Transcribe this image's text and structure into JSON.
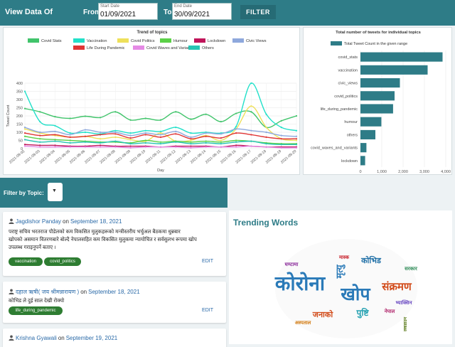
{
  "header": {
    "title": "View Data Of",
    "from_label": "From",
    "start_placeholder": "Start Date",
    "start_value": "01/09/2021",
    "to_label": "To",
    "end_placeholder": "End Date",
    "end_value": "30/09/2021",
    "filter_label": "FILTER"
  },
  "colors": {
    "accent": "#2e7c87",
    "chip": "#2e7d32",
    "link": "#2a6aa8"
  },
  "chart_data": [
    {
      "type": "line",
      "title": "Trend of topics",
      "xlabel": "Day",
      "ylabel": "Tweet Count",
      "ylim": [
        0,
        400
      ],
      "yticks": [
        0,
        50,
        100,
        150,
        200,
        250,
        300,
        350,
        400
      ],
      "legend_position": "top",
      "x": [
        "2021-09-02",
        "2021-09-03",
        "2021-09-04",
        "2021-09-05",
        "2021-09-06",
        "2021-09-07",
        "2021-09-08",
        "2021-09-09",
        "2021-09-10",
        "2021-09-11",
        "2021-09-12",
        "2021-09-13",
        "2021-09-14",
        "2021-09-15",
        "2021-09-16",
        "2021-09-17",
        "2021-09-18",
        "2021-09-19",
        "2021-09-20"
      ],
      "series": [
        {
          "name": "Covid Stats",
          "color": "#41c46b",
          "values": [
            245,
            225,
            195,
            185,
            198,
            190,
            225,
            175,
            185,
            175,
            225,
            180,
            210,
            165,
            215,
            225,
            130,
            170,
            200
          ]
        },
        {
          "name": "Vaccination",
          "color": "#22e0c9",
          "values": [
            350,
            165,
            140,
            95,
            100,
            90,
            110,
            95,
            110,
            105,
            130,
            95,
            100,
            95,
            135,
            400,
            210,
            130,
            110
          ]
        },
        {
          "name": "Covid Politics",
          "color": "#eee05a",
          "values": [
            120,
            95,
            80,
            70,
            75,
            60,
            70,
            55,
            45,
            95,
            45,
            50,
            80,
            50,
            120,
            260,
            130,
            60,
            50
          ]
        },
        {
          "name": "Humour",
          "color": "#5bd047",
          "values": [
            75,
            60,
            55,
            50,
            45,
            40,
            40,
            35,
            50,
            40,
            45,
            40,
            45,
            40,
            50,
            45,
            35,
            30,
            30
          ]
        },
        {
          "name": "Lockdown",
          "color": "#c0145a",
          "values": [
            25,
            20,
            20,
            15,
            15,
            20,
            15,
            15,
            15,
            10,
            15,
            15,
            15,
            10,
            20,
            15,
            10,
            10,
            10
          ]
        },
        {
          "name": "Civic Views",
          "color": "#8ea8dc",
          "values": [
            130,
            100,
            105,
            85,
            115,
            100,
            100,
            80,
            95,
            85,
            105,
            70,
            95,
            90,
            120,
            110,
            100,
            80,
            75
          ]
        },
        {
          "name": "Life During Pandemic",
          "color": "#e03535",
          "values": [
            95,
            80,
            85,
            70,
            75,
            85,
            90,
            65,
            85,
            70,
            90,
            60,
            75,
            65,
            95,
            85,
            70,
            60,
            60
          ]
        },
        {
          "name": "Covid Waves and Variants",
          "color": "#e58ae5",
          "values": [
            15,
            10,
            10,
            10,
            10,
            10,
            10,
            5,
            10,
            10,
            10,
            5,
            10,
            10,
            10,
            15,
            10,
            5,
            5
          ]
        },
        {
          "name": "Others",
          "color": "#27c4b4",
          "values": [
            55,
            40,
            45,
            35,
            40,
            35,
            45,
            30,
            35,
            30,
            40,
            30,
            35,
            30,
            40,
            45,
            30,
            25,
            25
          ]
        }
      ]
    },
    {
      "type": "bar",
      "orientation": "horizontal",
      "title": "Total number of tweets for individual topics",
      "legend": "Total Tweet Count in the given range",
      "xlim": [
        0,
        4000
      ],
      "xticks": [
        0,
        1000,
        2000,
        3000,
        4000
      ],
      "xtick_labels": [
        "0",
        "1,000",
        "2,000",
        "3,000",
        "4,000"
      ],
      "color": "#2e7c87",
      "categories": [
        "covid_stats",
        "vaccination",
        "civic_views",
        "covid_politics",
        "life_during_pandemic",
        "humour",
        "others",
        "covid_waves_and_variants",
        "lockdown"
      ],
      "values": [
        3850,
        3150,
        1850,
        1600,
        1530,
        980,
        700,
        280,
        220
      ]
    }
  ],
  "topic_filter": {
    "label": "Filter by Topic:",
    "dropdown_icon": "chevron-down-icon"
  },
  "tweets": [
    {
      "author": "Jagdishor Panday",
      "on": "on",
      "date": "September 18, 2021",
      "lines": [
        "पराष्ट्र सचिव भरतराज पौडेलको कम विकसित मुलुकहरूको मन्त्रीस्तरीय भर्चुअल बैठकमा धुन्नबार",
        "खोपको असमान वितरणबारे बोल्दै नेपालसहित कम विकसित मुलुकमा न्यायोचित र सर्वसुलभ रूपमा खोप",
        "उपलब्ध गराइनुपर्ने बताए ।"
      ],
      "tags": [
        "vaccination",
        "covid_politics"
      ],
      "edit_label": "EDIT"
    },
    {
      "author": "दहाल ऋषी( जय श्रीमन्नारायण )",
      "on": "on",
      "date": "September 18, 2021",
      "lines": [
        "कोभिड ले दुई साल देखी रोक्यो"
      ],
      "tags": [
        "life_during_pandemic"
      ],
      "edit_label": "EDIT"
    },
    {
      "author": "Krishna Gyawali",
      "on": "on",
      "date": "September 19, 2021"
    }
  ],
  "trending": {
    "title": "Trending Words",
    "words": [
      {
        "text": "कोरोना",
        "color": "#2a7ab8"
      },
      {
        "text": "खोप",
        "color": "#2a7ab8"
      },
      {
        "text": "संक्रमण",
        "color": "#d24a18"
      },
      {
        "text": "मृत्यु",
        "color": "#2a7ab8"
      },
      {
        "text": "कोभिड",
        "color": "#1f6fa6"
      },
      {
        "text": "पुष्टि",
        "color": "#22a0b0"
      },
      {
        "text": "जनाको",
        "color": "#d24a18"
      },
      {
        "text": "मास्क",
        "color": "#c8202a"
      },
      {
        "text": "नेपाल",
        "color": "#b0256b"
      },
      {
        "text": "घण्टामा",
        "color": "#8a2a9a"
      },
      {
        "text": "सरकार",
        "color": "#2e8b57"
      },
      {
        "text": "अस्पताल",
        "color": "#d27a10"
      },
      {
        "text": "लकडाउन",
        "color": "#5a7a1a"
      },
      {
        "text": "भ्याक्सिन",
        "color": "#6a4ac2"
      }
    ]
  }
}
